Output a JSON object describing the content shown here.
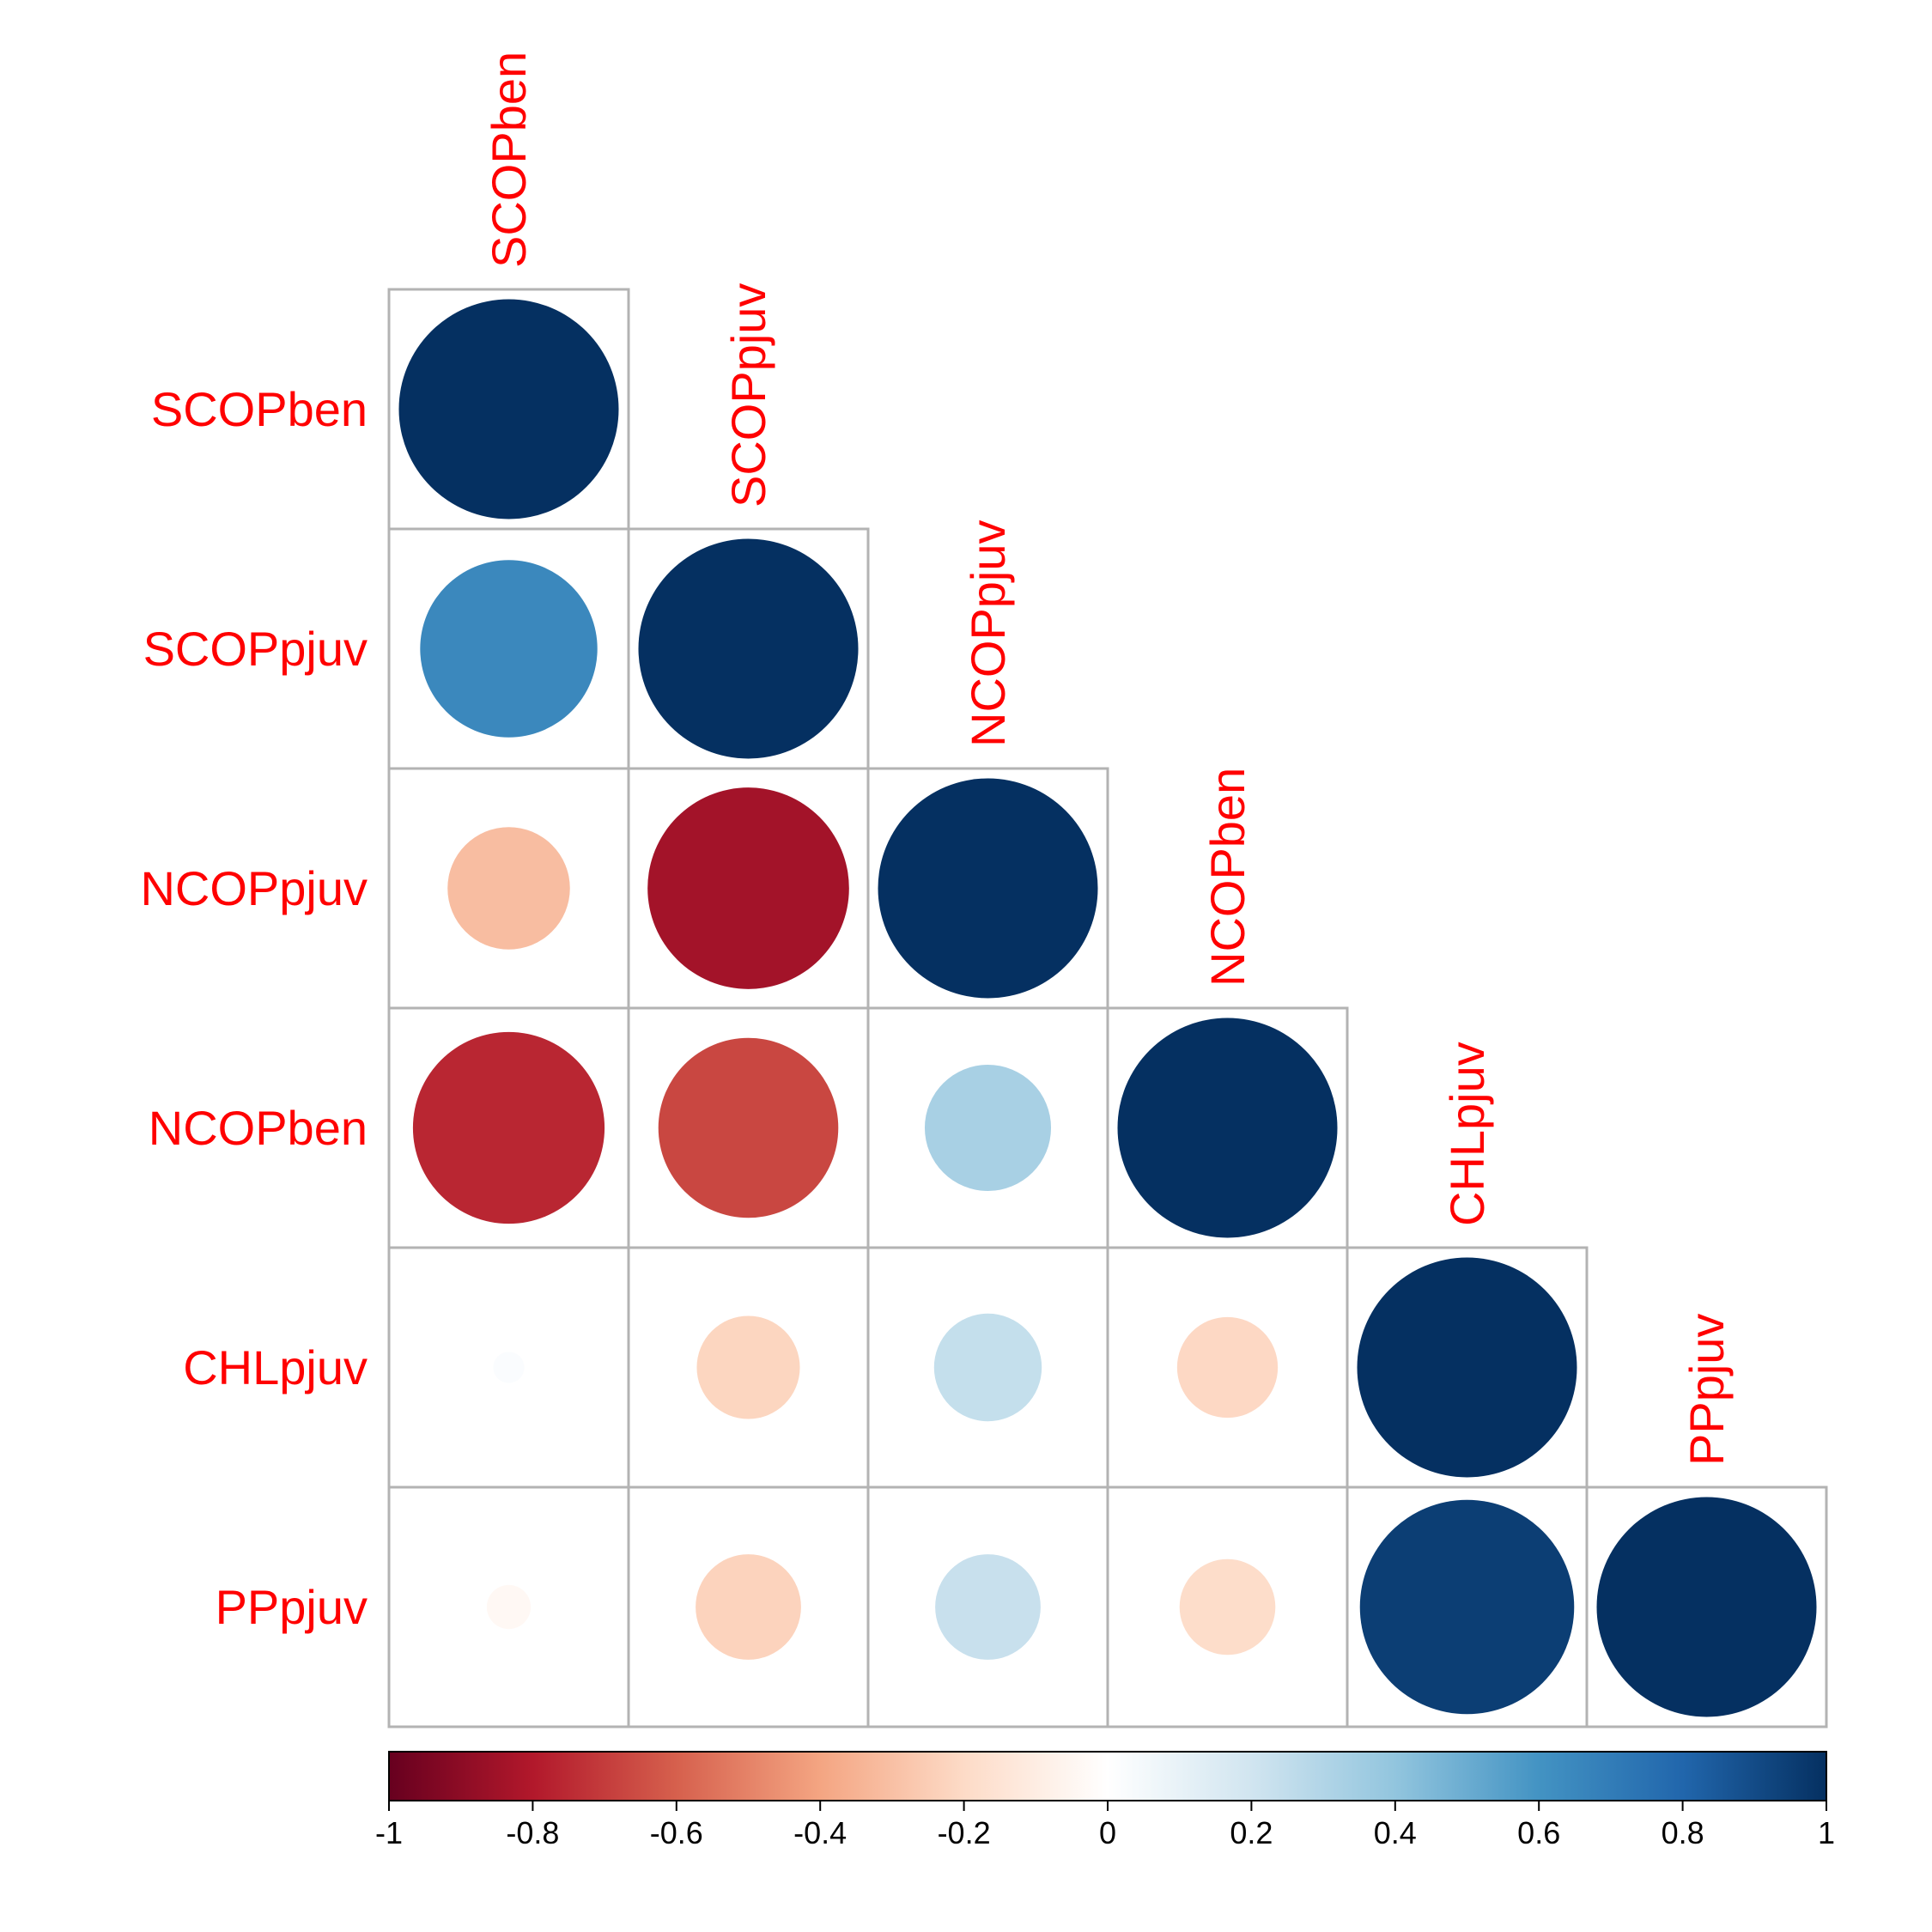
{
  "chart_data": {
    "type": "heatmap",
    "subtype": "correlation-matrix-circles",
    "shape": "lower-triangle",
    "variables": [
      "SCOPben",
      "SCOPpjuv",
      "NCOPpjuv",
      "NCOPben",
      "CHLpjuv",
      "PPpjuv"
    ],
    "matrix": [
      [
        1.0
      ],
      [
        0.65,
        1.0
      ],
      [
        -0.31,
        -0.84,
        1.0
      ],
      [
        -0.76,
        -0.67,
        0.33,
        1.0
      ],
      [
        0.02,
        -0.22,
        0.24,
        -0.21,
        1.0
      ],
      [
        -0.04,
        -0.23,
        0.23,
        -0.19,
        0.95,
        1.0
      ]
    ],
    "colorbar": {
      "range": [
        -1,
        1
      ],
      "ticks": [
        "-1",
        "-0.8",
        "-0.6",
        "-0.4",
        "-0.2",
        "0",
        "0.2",
        "0.4",
        "0.6",
        "0.8",
        "1"
      ],
      "placement": "bottom",
      "colors": [
        "#67001F",
        "#B2182B",
        "#D6604D",
        "#F4A582",
        "#FDDBC7",
        "#FFFFFF",
        "#D1E5F0",
        "#92C5DE",
        "#4393C3",
        "#2166AC",
        "#053061"
      ]
    },
    "label_color": "#ff0000",
    "grid_color": "#b3b3b3"
  }
}
